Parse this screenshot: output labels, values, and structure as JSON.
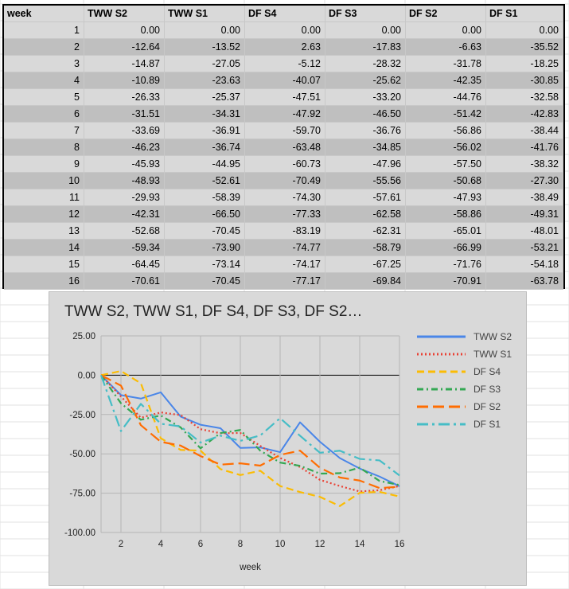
{
  "table": {
    "headers": [
      "week",
      "TWW S2",
      "TWW S1",
      "DF S4",
      "DF S3",
      "DF S2",
      "DF S1"
    ],
    "rows": [
      [
        "1",
        "0.00",
        "0.00",
        "0.00",
        "0.00",
        "0.00",
        "0.00"
      ],
      [
        "2",
        "-12.64",
        "-13.52",
        "2.63",
        "-17.83",
        "-6.63",
        "-35.52"
      ],
      [
        "3",
        "-14.87",
        "-27.05",
        "-5.12",
        "-28.32",
        "-31.78",
        "-18.25"
      ],
      [
        "4",
        "-10.89",
        "-23.63",
        "-40.07",
        "-25.62",
        "-42.35",
        "-30.85"
      ],
      [
        "5",
        "-26.33",
        "-25.37",
        "-47.51",
        "-33.20",
        "-44.76",
        "-32.58"
      ],
      [
        "6",
        "-31.51",
        "-34.31",
        "-47.92",
        "-46.50",
        "-51.42",
        "-42.83"
      ],
      [
        "7",
        "-33.69",
        "-36.91",
        "-59.70",
        "-36.76",
        "-56.86",
        "-38.44"
      ],
      [
        "8",
        "-46.23",
        "-36.74",
        "-63.48",
        "-34.85",
        "-56.02",
        "-41.76"
      ],
      [
        "9",
        "-45.93",
        "-44.95",
        "-60.73",
        "-47.96",
        "-57.50",
        "-38.32"
      ],
      [
        "10",
        "-48.93",
        "-52.61",
        "-70.49",
        "-55.56",
        "-50.68",
        "-27.30"
      ],
      [
        "11",
        "-29.93",
        "-58.39",
        "-74.30",
        "-57.61",
        "-47.93",
        "-38.49"
      ],
      [
        "12",
        "-42.31",
        "-66.50",
        "-77.33",
        "-62.58",
        "-58.86",
        "-49.31"
      ],
      [
        "13",
        "-52.68",
        "-70.45",
        "-83.19",
        "-62.31",
        "-65.01",
        "-48.01"
      ],
      [
        "14",
        "-59.34",
        "-73.90",
        "-74.77",
        "-58.79",
        "-66.99",
        "-53.21"
      ],
      [
        "15",
        "-64.45",
        "-73.14",
        "-74.17",
        "-67.25",
        "-71.76",
        "-54.18"
      ],
      [
        "16",
        "-70.61",
        "-70.45",
        "-77.17",
        "-69.84",
        "-70.91",
        "-63.78"
      ]
    ]
  },
  "chart_data": {
    "type": "line",
    "title": "TWW S2, TWW S1, DF S4, DF S3, DF S2…",
    "xlabel": "week",
    "ylabel": "",
    "x": [
      1,
      2,
      3,
      4,
      5,
      6,
      7,
      8,
      9,
      10,
      11,
      12,
      13,
      14,
      15,
      16
    ],
    "xlim": [
      1,
      16
    ],
    "ylim": [
      -100,
      25
    ],
    "x_ticks": [
      2,
      4,
      6,
      8,
      10,
      12,
      14,
      16
    ],
    "y_ticks": [
      25,
      0,
      -25,
      -50,
      -75,
      -100
    ],
    "y_tick_labels": [
      "25.00",
      "0.00",
      "-25.00",
      "-50.00",
      "-75.00",
      "-100.00"
    ],
    "grid": true,
    "legend_position": "right",
    "series": [
      {
        "name": "TWW S2",
        "color": "#4a86e8",
        "dash": "solid",
        "values": [
          0.0,
          -12.64,
          -14.87,
          -10.89,
          -26.33,
          -31.51,
          -33.69,
          -46.23,
          -45.93,
          -48.93,
          -29.93,
          -42.31,
          -52.68,
          -59.34,
          -64.45,
          -70.61
        ]
      },
      {
        "name": "TWW S1",
        "color": "#e94235",
        "dash": "dot",
        "values": [
          0.0,
          -13.52,
          -27.05,
          -23.63,
          -25.37,
          -34.31,
          -36.91,
          -36.74,
          -44.95,
          -52.61,
          -58.39,
          -66.5,
          -70.45,
          -73.9,
          -73.14,
          -70.45
        ]
      },
      {
        "name": "DF S4",
        "color": "#fbbc04",
        "dash": "dash",
        "values": [
          0.0,
          2.63,
          -5.12,
          -40.07,
          -47.51,
          -47.92,
          -59.7,
          -63.48,
          -60.73,
          -70.49,
          -74.3,
          -77.33,
          -83.19,
          -74.77,
          -74.17,
          -77.17
        ]
      },
      {
        "name": "DF S3",
        "color": "#34a853",
        "dash": "dashdot",
        "values": [
          0.0,
          -17.83,
          -28.32,
          -25.62,
          -33.2,
          -46.5,
          -36.76,
          -34.85,
          -47.96,
          -55.56,
          -57.61,
          -62.58,
          -62.31,
          -58.79,
          -67.25,
          -69.84
        ]
      },
      {
        "name": "DF S2",
        "color": "#ff6d01",
        "dash": "longdash",
        "values": [
          0.0,
          -6.63,
          -31.78,
          -42.35,
          -44.76,
          -51.42,
          -56.86,
          -56.02,
          -57.5,
          -50.68,
          -47.93,
          -58.86,
          -65.01,
          -66.99,
          -71.76,
          -70.91
        ]
      },
      {
        "name": "DF S1",
        "color": "#46bdc6",
        "dash": "longdashdot",
        "values": [
          0.0,
          -35.52,
          -18.25,
          -30.85,
          -32.58,
          -42.83,
          -38.44,
          -41.76,
          -38.32,
          -27.3,
          -38.49,
          -49.31,
          -48.01,
          -53.21,
          -54.18,
          -63.78
        ]
      }
    ]
  }
}
